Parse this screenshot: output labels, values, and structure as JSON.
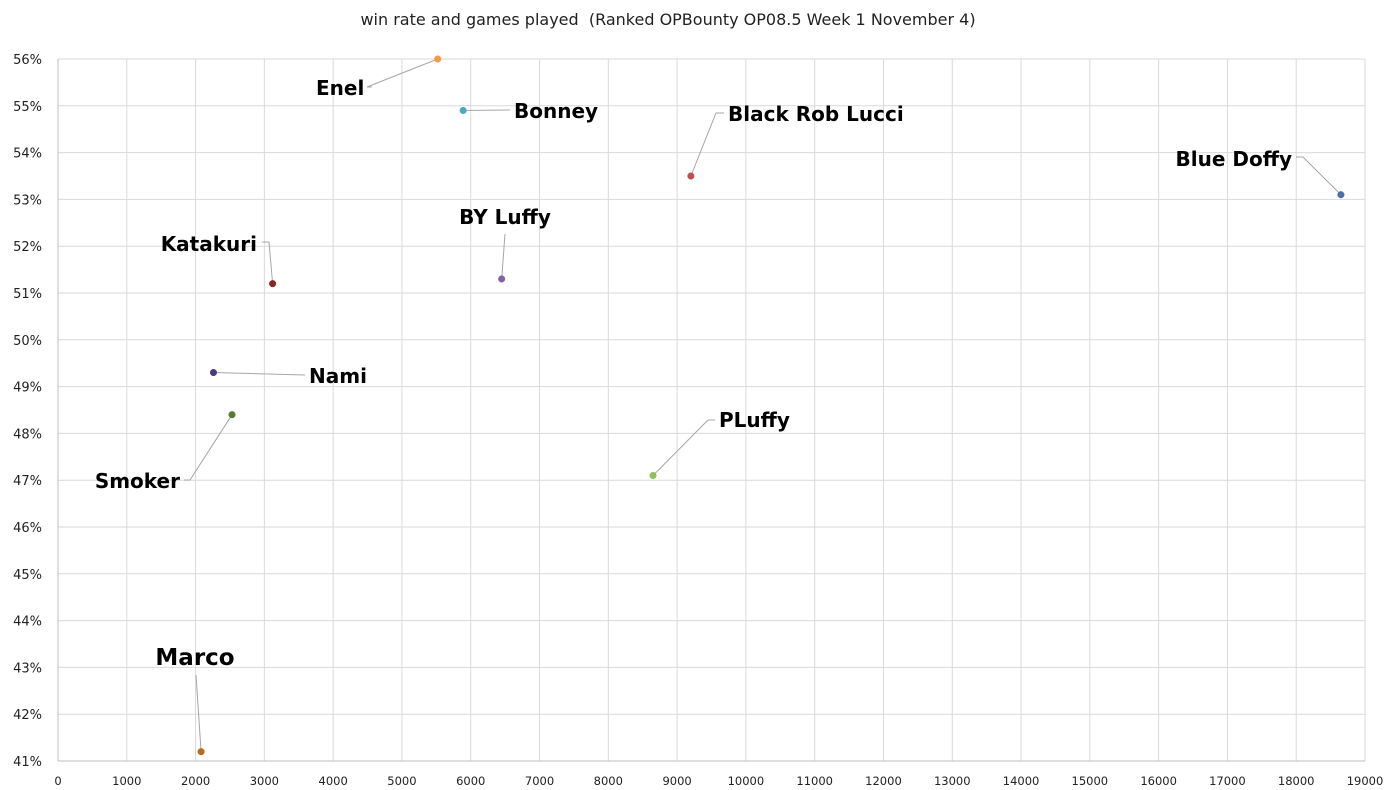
{
  "chart_data": {
    "type": "scatter",
    "title": "win rate and games played  (Ranked OPBounty OP08.5 Week 1 November 4)",
    "xlabel": "",
    "ylabel": "",
    "xlim": [
      0,
      19000
    ],
    "ylim": [
      41,
      56
    ],
    "x_ticks": [
      0,
      1000,
      2000,
      3000,
      4000,
      5000,
      6000,
      7000,
      8000,
      9000,
      10000,
      11000,
      12000,
      13000,
      14000,
      15000,
      16000,
      17000,
      18000,
      19000
    ],
    "y_ticks": [
      41,
      42,
      43,
      44,
      45,
      46,
      47,
      48,
      49,
      50,
      51,
      52,
      53,
      54,
      55,
      56
    ],
    "y_tick_labels": [
      "41%",
      "42%",
      "43%",
      "44%",
      "45%",
      "46%",
      "47%",
      "48%",
      "49%",
      "50%",
      "51%",
      "52%",
      "53%",
      "54%",
      "55%",
      "56%"
    ],
    "grid": true,
    "points": [
      {
        "label": "Enel",
        "x": 5520,
        "y": 56.0,
        "color": "#f39c46"
      },
      {
        "label": "Bonney",
        "x": 5890,
        "y": 54.9,
        "color": "#4aa8c0"
      },
      {
        "label": "Black Rob Lucci",
        "x": 9200,
        "y": 53.5,
        "color": "#c0504d"
      },
      {
        "label": "Blue Doffy",
        "x": 18650,
        "y": 53.1,
        "color": "#4f6fa8"
      },
      {
        "label": "BY Luffy",
        "x": 6450,
        "y": 51.3,
        "color": "#8064a2"
      },
      {
        "label": "Katakuri",
        "x": 3120,
        "y": 51.2,
        "color": "#8b2525"
      },
      {
        "label": "Nami",
        "x": 2260,
        "y": 49.3,
        "color": "#4b3a78"
      },
      {
        "label": "Smoker",
        "x": 2530,
        "y": 48.4,
        "color": "#5a7a2e"
      },
      {
        "label": "PLuffy",
        "x": 8650,
        "y": 47.1,
        "color": "#8dc35a"
      },
      {
        "label": "Marco",
        "x": 2080,
        "y": 41.2,
        "color": "#b86a1e"
      }
    ]
  }
}
